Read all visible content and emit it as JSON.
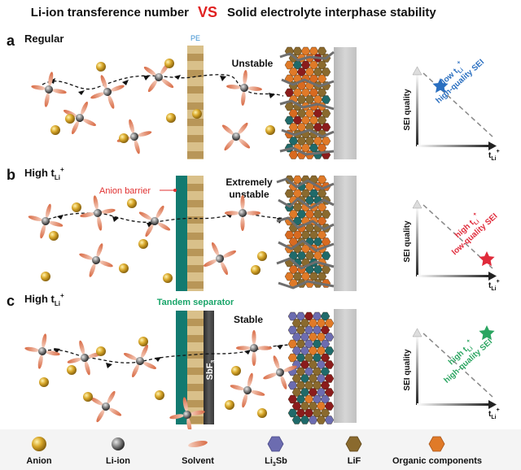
{
  "title": {
    "left": "Li-ion transference number",
    "vs": "VS",
    "right": "Solid electrolyte interphase stability"
  },
  "colors": {
    "title_vs": "#e02020",
    "anion": "#c99a1e",
    "li_ion": "#7a7a7a",
    "solvent": "#e08a6a",
    "li3sb": "#6c6cb0",
    "lif": "#8a6a2e",
    "organic": "#e07a28",
    "pe_label": "#3a8fd0",
    "anion_barrier": "#e03030",
    "tandem": "#1aa56a",
    "barrier_teal": "#127a70",
    "star_blue": "#2a6fc0",
    "star_red": "#e02a3a",
    "star_green": "#2aa560"
  },
  "panels": [
    {
      "letter": "a",
      "heading": "Regular",
      "separator_label": "PE",
      "stability": [
        "Unstable"
      ],
      "chart_annotation": [
        "low t",
        "high-quality SEI"
      ]
    },
    {
      "letter": "b",
      "heading": "High t",
      "barrier_label": "Anion barrier",
      "stability": [
        "Extremely",
        "unstable"
      ],
      "chart_annotation": [
        "high t",
        "low-quality SEI"
      ]
    },
    {
      "letter": "c",
      "heading": "High t",
      "separator_label": "Tandem separator",
      "layer_label": "SbF",
      "layer_sub": "3",
      "stability": [
        "Stable"
      ],
      "chart_annotation": [
        "high t",
        "high-quality SEI"
      ]
    }
  ],
  "axes": {
    "y": "SEI quality",
    "x": "t",
    "sub": "Li",
    "sup": "+"
  },
  "legend": [
    {
      "label": "Anion",
      "icon": "anion-sphere-icon"
    },
    {
      "label": "Li-ion",
      "icon": "li-ion-sphere-icon"
    },
    {
      "label": "Solvent",
      "icon": "solvent-ellipse-icon"
    },
    {
      "label": "Li",
      "sub": "3",
      "label_tail": "Sb",
      "icon": "li3sb-hexagon-icon"
    },
    {
      "label": "LiF",
      "icon": "lif-hexagon-icon"
    },
    {
      "label": "Organic components",
      "icon": "organic-hexagon-icon"
    }
  ]
}
